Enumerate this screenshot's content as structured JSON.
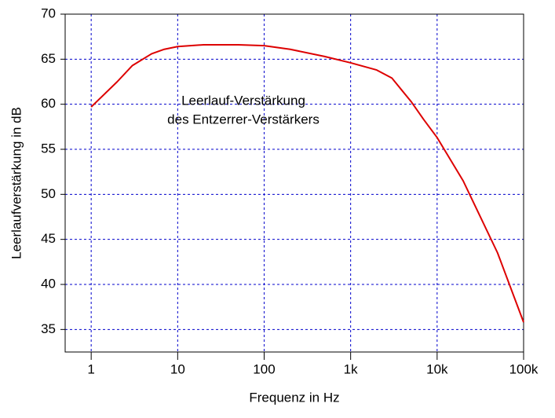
{
  "chart_data": {
    "type": "line",
    "annotation": [
      "Leerlauf-Verstärkung",
      "des Entzerrer-Verstärkers"
    ],
    "x_label": "Frequenz in Hz",
    "y_label": "Leerlaufverstärkung in dB",
    "x_log": true,
    "grid": true,
    "xlim": [
      0.5,
      100000
    ],
    "ylim": [
      32.5,
      70
    ],
    "xticks": [
      1,
      10,
      100,
      {
        "value": 1000,
        "label": "1k"
      },
      {
        "value": 10000,
        "label": "10k"
      },
      {
        "value": 100000,
        "label": "100k"
      }
    ],
    "yticks": [
      35,
      40,
      45,
      50,
      55,
      60,
      65,
      70
    ],
    "x": [
      1,
      2,
      3,
      5,
      7,
      10,
      20,
      50,
      100,
      200,
      500,
      1000,
      2000,
      3000,
      5000,
      7000,
      10000,
      20000,
      50000,
      100000
    ],
    "series": [
      {
        "color": "#dd0000",
        "values": [
          59.7,
          62.5,
          64.3,
          65.6,
          66.1,
          66.4,
          66.6,
          66.6,
          66.5,
          66.1,
          65.3,
          64.6,
          63.8,
          62.9,
          60.3,
          58.3,
          56.3,
          51.5,
          43.5,
          35.8
        ]
      }
    ]
  }
}
